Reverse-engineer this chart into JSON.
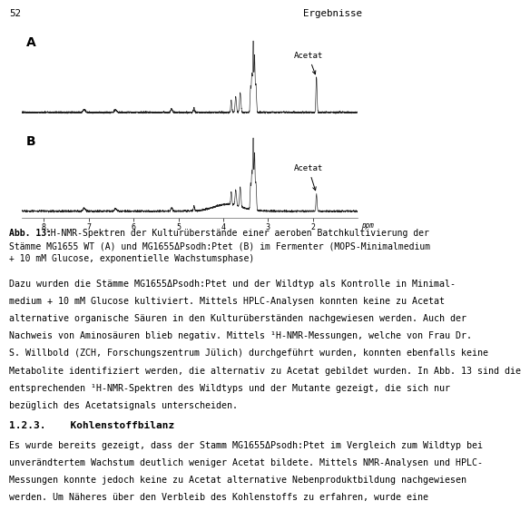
{
  "page_number": "52",
  "header_right": "Ergebnisse",
  "label_A": "A",
  "label_B": "B",
  "acetat_label": "Acetat",
  "xaxis_ticks": [
    8,
    7,
    6,
    5,
    4,
    3,
    2
  ],
  "xaxis_label": "ppm",
  "bg_color": "#ffffff",
  "text_color": "#000000",
  "spectrum_color": "#222222",
  "font_size_body": 7.2,
  "font_size_header": 7.8,
  "font_size_caption": 7.0,
  "font_size_section": 8.0,
  "caption_line1": "Abb. 13:  ¹H-NMR-Spektren der Kulturüberstände einer aeroben Batchkultivierung der",
  "caption_line2": "Stämme MG1655 WT (A) und MG1655ΔPsodh:Ptet (B) im Fermenter (MOPS-Minimalmedium",
  "caption_line3": "+ 10 mM Glucose, exponentielle Wachstumsphase)",
  "para1_lines": [
    "Dazu wurden die Stämme MG1655ΔPsodh:Ptet und der Wildtyp als Kontrolle in Minimal-",
    "medium + 10 mM Glucose kultiviert. Mittels HPLC-Analysen konnten keine zu Acetat",
    "alternative organische Säuren in den Kulturüberständen nachgewiesen werden. Auch der",
    "Nachweis von Aminosäuren blieb negativ. Mittels ¹H-NMR-Messungen, welche von Frau Dr.",
    "S. Willbold (ZCH, Forschungszentrum Jülich) durchgeführt wurden, konnten ebenfalls keine",
    "Metabolite identifiziert werden, die alternativ zu Acetat gebildet wurden. In Abb. 13 sind die",
    "entsprechenden ¹H-NMR-Spektren des Wildtyps und der Mutante gezeigt, die sich nur",
    "bezüglich des Acetatsignals unterscheiden."
  ],
  "section_number": "1.2.3.",
  "section_title": "Kohlenstoffbilanz",
  "para2_lines": [
    "Es wurde bereits gezeigt, dass der Stamm MG1655ΔPsodh:Ptet im Vergleich zum Wildtyp bei",
    "unverändtertem Wachstum deutlich weniger Acetat bildete. Mittels NMR-Analysen und HPLC-",
    "Messungen konnte jedoch keine zu Acetat alternative Nebenproduktbildung nachgewiesen",
    "werden. Um Näheres über den Verbleib des Kohlenstoffs zu erfahren, wurde eine"
  ]
}
